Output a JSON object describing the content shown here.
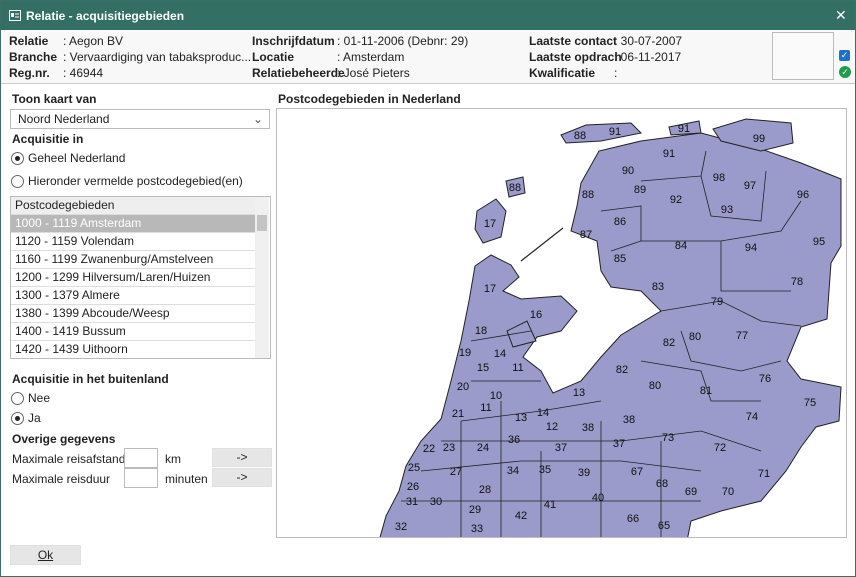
{
  "window": {
    "title": "Relatie - acquisitiegebieden",
    "close": "✕"
  },
  "header": {
    "rows": [
      [
        {
          "label": "Relatie",
          "value": ": Aegon BV"
        },
        {
          "label": "Inschrijfdatum",
          "value": ": 01-11-2006  (Debnr: 29)"
        },
        {
          "label": "Laatste contact",
          "value": ": 30-07-2007"
        }
      ],
      [
        {
          "label": "Branche",
          "value": ": Vervaardiging van tabaksproduc..."
        },
        {
          "label": "Locatie",
          "value": ": Amsterdam"
        },
        {
          "label": "Laatste opdrach",
          "value": ": 06-11-2017"
        }
      ],
      [
        {
          "label": "Reg.nr.",
          "value": ": 46944"
        },
        {
          "label": "Relatiebeheerde",
          "value": ": José Pieters"
        },
        {
          "label": "Kwalificatie",
          "value": ":"
        }
      ]
    ]
  },
  "left": {
    "show_map_label": "Toon kaart van",
    "show_map_value": "Noord Nederland",
    "acquisition_label": "Acquisitie in",
    "acquisition_options": [
      "Geheel Nederland",
      "Hieronder vermelde postcodegebied(en)"
    ],
    "list_header": "Postcodegebieden",
    "list_items": [
      "1000 - 1119 Amsterdam",
      "1120 - 1159 Volendam",
      "1160 - 1199 Zwanenburg/Amstelveen",
      "1200 - 1299 Hilversum/Laren/Huizen",
      "1300 - 1379 Almere",
      "1380 - 1399 Abcoude/Weesp",
      "1400 - 1419 Bussum",
      "1420 - 1439 Uithoorn"
    ],
    "abroad_label": "Acquisitie in het buitenland",
    "abroad_options": [
      "Nee",
      "Ja"
    ],
    "other_label": "Overige gegevens",
    "distance_label": "Maximale reisafstand",
    "distance_unit": "km",
    "duration_label": "Maximale reisduur",
    "duration_unit": "minuten",
    "arrow_button": "->",
    "ok": "Ok"
  },
  "map": {
    "title": "Postcodegebieden in Nederland",
    "regions": [
      "88",
      "91",
      "91",
      "99",
      "91",
      "90",
      "98",
      "97",
      "96",
      "89",
      "92",
      "88",
      "93",
      "88",
      "17",
      "86",
      "87",
      "84",
      "94",
      "95",
      "85",
      "83",
      "78",
      "79",
      "17",
      "16",
      "18",
      "82",
      "80",
      "77",
      "19",
      "14",
      "15",
      "11",
      "82",
      "76",
      "80",
      "81",
      "20",
      "10",
      "13",
      "75",
      "21",
      "11",
      "14",
      "13",
      "12",
      "38",
      "74",
      "38",
      "36",
      "73",
      "22",
      "23",
      "24",
      "37",
      "37",
      "72",
      "25",
      "27",
      "34",
      "35",
      "39",
      "67",
      "71",
      "26",
      "28",
      "68",
      "69",
      "70",
      "40",
      "31",
      "30",
      "29",
      "42",
      "41",
      "32",
      "33",
      "66",
      "65"
    ]
  }
}
